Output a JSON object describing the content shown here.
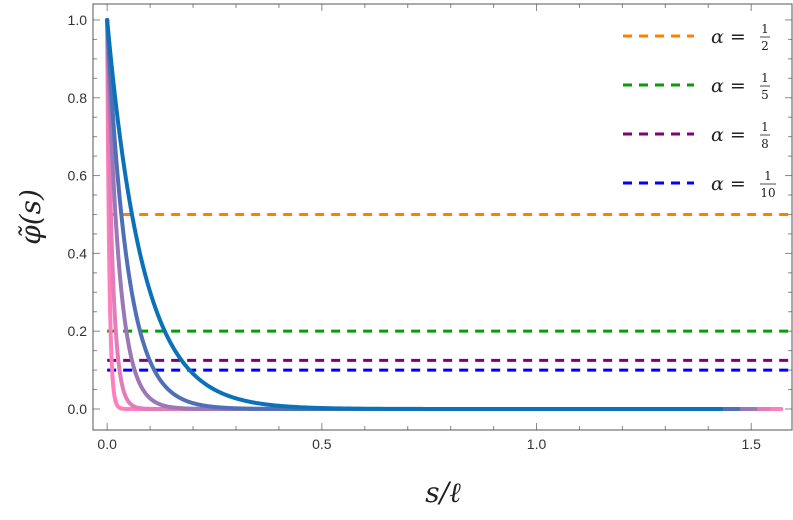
{
  "chart_data": {
    "type": "line",
    "title": "",
    "xlabel": "s/ℓ",
    "ylabel": "φ̃(s)",
    "xlim": [
      -0.033,
      1.595
    ],
    "ylim": [
      -0.054,
      1.041
    ],
    "grid": false,
    "legend_position": "top-right",
    "xticks": [
      "0.0",
      "0.5",
      "1.0",
      "1.5"
    ],
    "xtick_values": [
      0,
      0.5,
      1.0,
      1.5
    ],
    "yticks": [
      "0.0",
      "0.2",
      "0.4",
      "0.6",
      "0.8",
      "1.0"
    ],
    "ytick_values": [
      0,
      0.2,
      0.4,
      0.6,
      0.8,
      1.0
    ],
    "curves": [
      {
        "color": "#0b72b9",
        "decay_rate": 12,
        "x_end": 1.43
      },
      {
        "color": "#4f70b6",
        "decay_rate": 21,
        "x_end": 1.47
      },
      {
        "color": "#9a78b8",
        "decay_rate": 36,
        "x_end": 1.51
      },
      {
        "color": "#e37cb9",
        "decay_rate": 80,
        "x_end": 1.54
      },
      {
        "color": "#ff7ebd",
        "decay_rate": 200,
        "x_end": 1.57
      }
    ],
    "reference_lines": [
      {
        "label_lhs": "α =",
        "numerator": "1",
        "denominator": "2",
        "value": 0.5,
        "color": "#ff8000"
      },
      {
        "label_lhs": "α =",
        "numerator": "1",
        "denominator": "5",
        "value": 0.2,
        "color": "#0a9a0a"
      },
      {
        "label_lhs": "α =",
        "numerator": "1",
        "denominator": "8",
        "value": 0.125,
        "color": "#800080"
      },
      {
        "label_lhs": "α =",
        "numerator": "1",
        "denominator": "10",
        "value": 0.1,
        "color": "#0000ff"
      }
    ]
  }
}
